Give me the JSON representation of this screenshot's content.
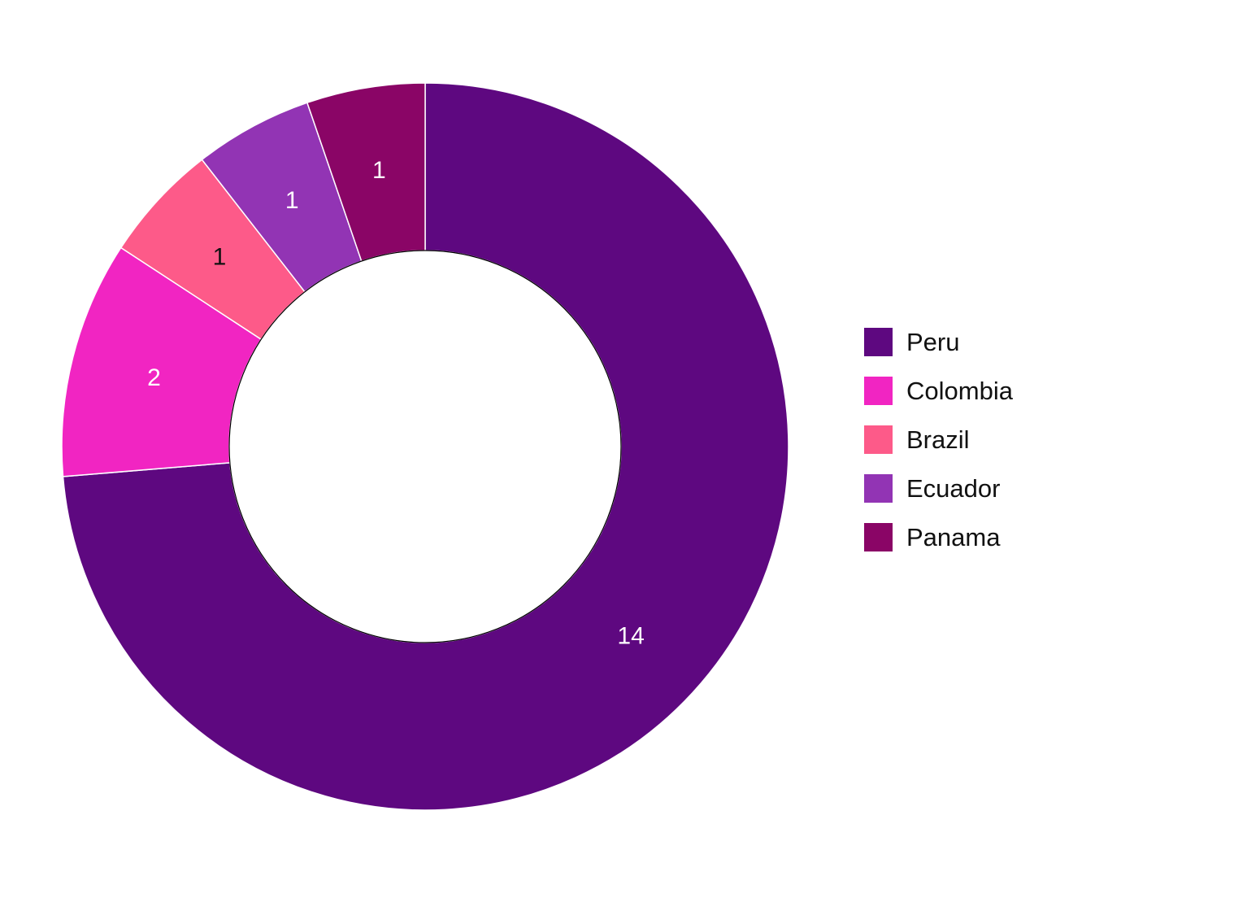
{
  "chart_data": {
    "type": "pie",
    "variant": "donut",
    "title": "",
    "categories": [
      "Peru",
      "Colombia",
      "Brazil",
      "Ecuador",
      "Panama"
    ],
    "values": [
      14,
      2,
      1,
      1,
      1
    ],
    "colors": [
      "#5e0880",
      "#f125c2",
      "#fd5a89",
      "#9234b4",
      "#8a0566"
    ],
    "label_colors": [
      "#ffffff",
      "#ffffff",
      "#111111",
      "#ffffff",
      "#ffffff"
    ],
    "legend_position": "right",
    "start_angle": "top, clockwise"
  }
}
